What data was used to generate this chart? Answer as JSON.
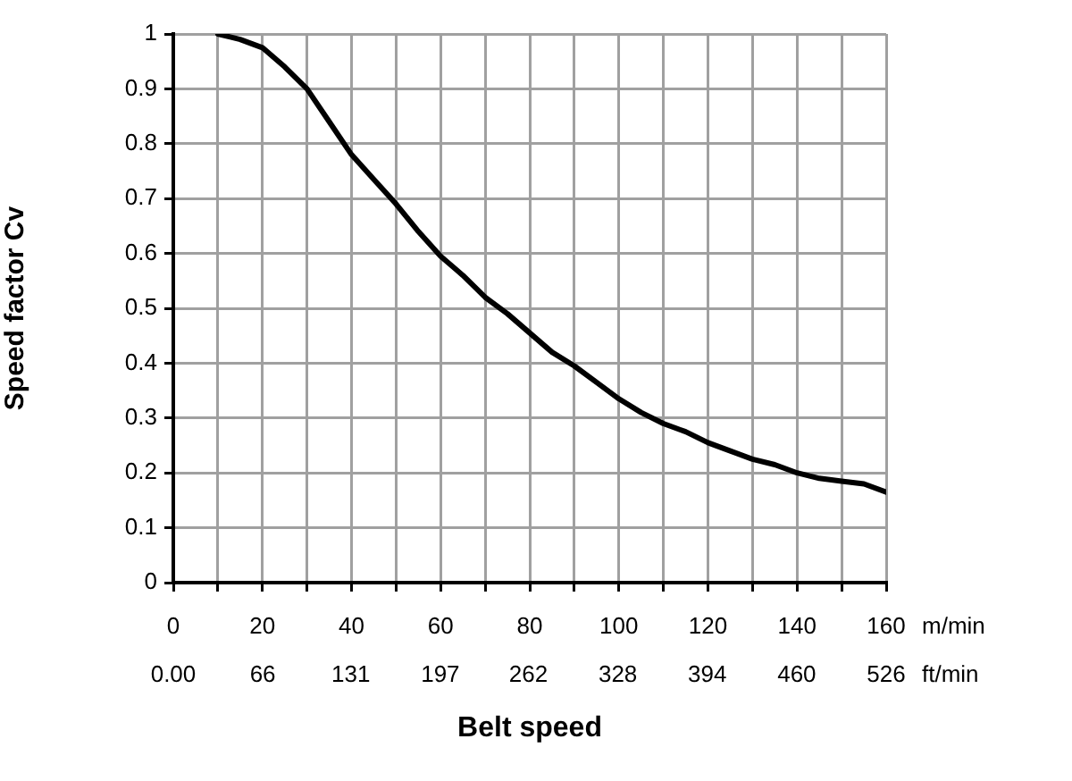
{
  "chart_data": {
    "type": "line",
    "xlabel": "Belt speed",
    "ylabel": "Speed factor Cv",
    "annotations": [
      "m/min",
      "ft/min"
    ],
    "x": [
      10,
      15,
      20,
      25,
      30,
      35,
      40,
      45,
      50,
      55,
      60,
      65,
      70,
      75,
      80,
      85,
      90,
      95,
      100,
      105,
      110,
      115,
      120,
      125,
      130,
      135,
      140,
      145,
      150,
      155,
      160
    ],
    "series": [
      {
        "color": "#000000",
        "values": [
          1.0,
          0.99,
          0.975,
          0.94,
          0.9,
          0.84,
          0.78,
          0.735,
          0.69,
          0.64,
          0.595,
          0.56,
          0.52,
          0.49,
          0.455,
          0.42,
          0.395,
          0.365,
          0.335,
          0.31,
          0.29,
          0.275,
          0.255,
          0.24,
          0.225,
          0.215,
          0.2,
          0.19,
          0.185,
          0.18,
          0.165
        ]
      }
    ],
    "xlim": [
      0,
      160
    ],
    "xticks": [
      0,
      {
        "value": 10,
        "label": null
      },
      20,
      {
        "value": 30,
        "label": null
      },
      40,
      {
        "value": 50,
        "label": null
      },
      60,
      {
        "value": 70,
        "label": null
      },
      80,
      {
        "value": 90,
        "label": null
      },
      100,
      {
        "value": 110,
        "label": null
      },
      120,
      {
        "value": 130,
        "label": null
      },
      140,
      {
        "value": 150,
        "label": null
      },
      160
    ],
    "x2lim": [
      0,
      526
    ],
    "x2ticks": [
      {
        "value": 0,
        "label": "0.00"
      },
      66,
      131,
      197,
      262,
      328,
      394,
      460,
      526
    ],
    "ylim": [
      0,
      1
    ],
    "yticks": [
      0,
      0.1,
      0.2,
      0.3,
      0.4,
      0.5,
      0.6,
      0.7,
      0.8,
      0.9,
      1
    ],
    "grid": true,
    "line_style": "solid",
    "legend": false
  }
}
